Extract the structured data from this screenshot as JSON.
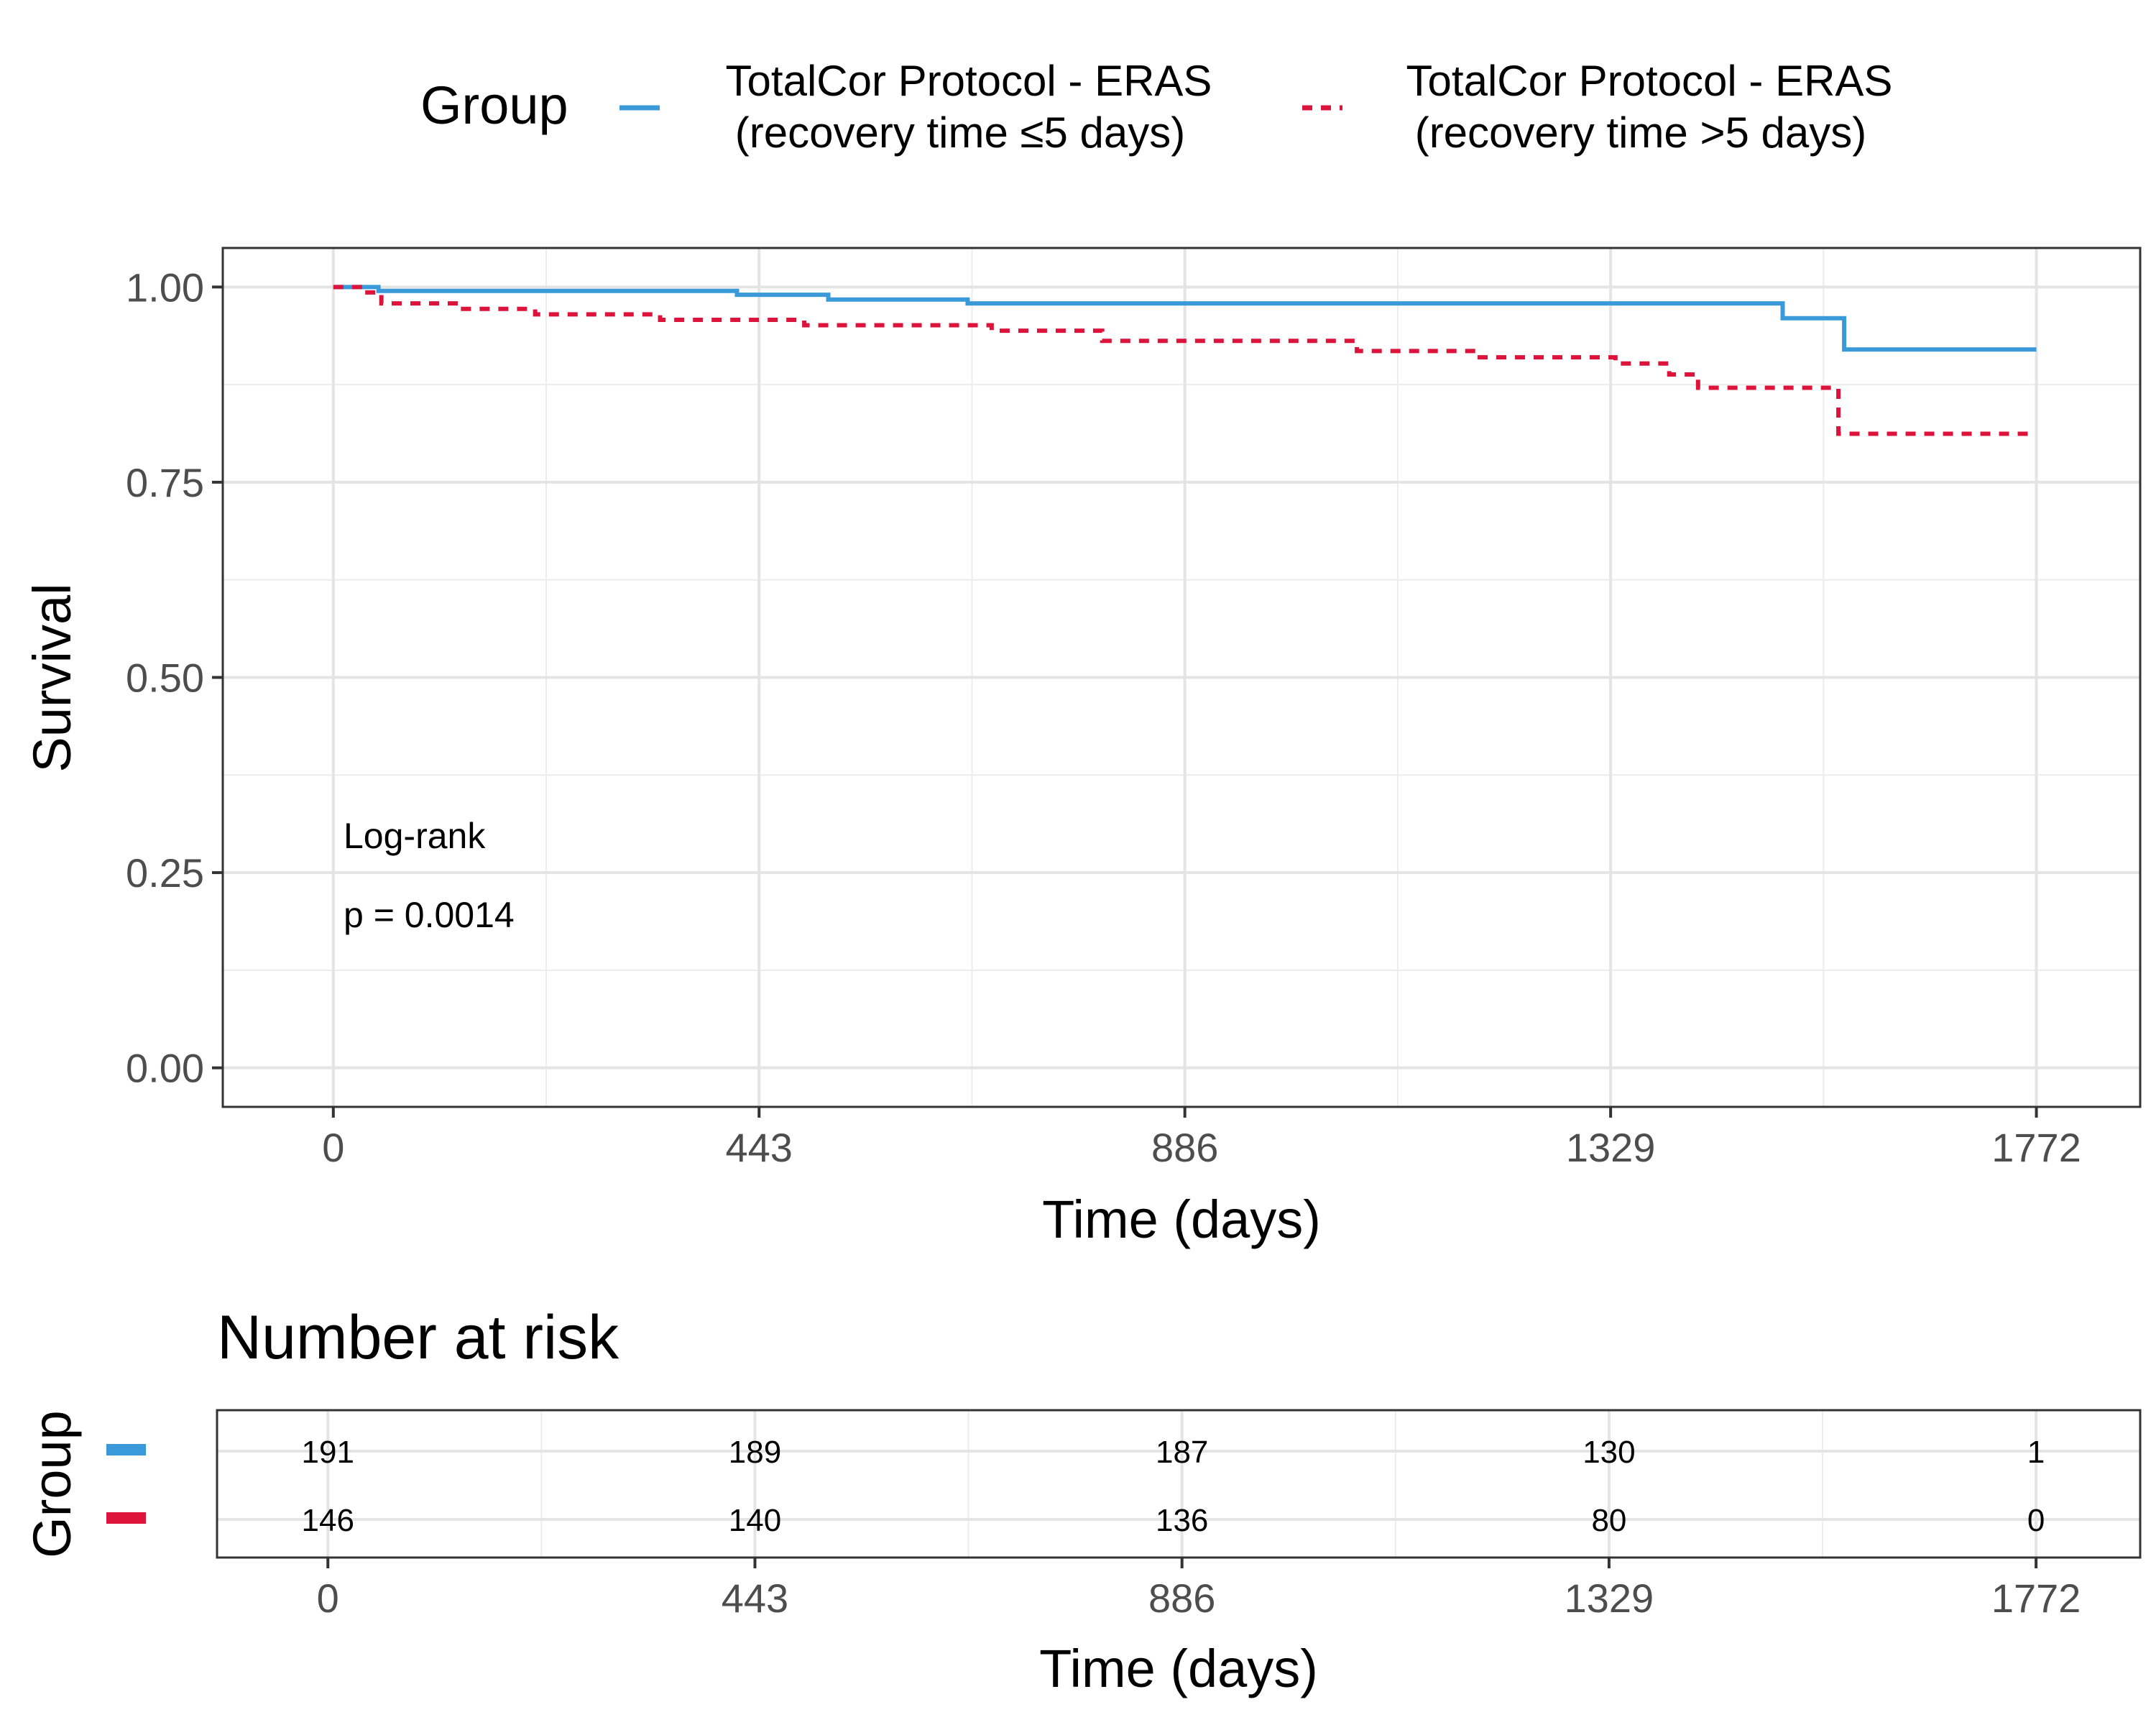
{
  "legend": {
    "title": "Group",
    "items": [
      {
        "line1": "TotalCor Protocol - ERAS",
        "line2": "(recovery time ≤5 days)",
        "color": "#3a9ad9",
        "dash": "solid"
      },
      {
        "line1": "TotalCor Protocol - ERAS",
        "line2": "(recovery time >5 days)",
        "color": "#dc143c",
        "dash": "dashed"
      }
    ]
  },
  "annotation": {
    "line1": "Log-rank",
    "line2": "p = 0.0014"
  },
  "chart_data": {
    "type": "line",
    "subtype": "kaplan-meier-step",
    "xlabel": "Time (days)",
    "ylabel": "Survival",
    "xlim": [
      -115,
      1880
    ],
    "ylim": [
      -0.05,
      1.05
    ],
    "xticks": [
      0,
      443,
      886,
      1329,
      1772
    ],
    "yticks": [
      0.0,
      0.25,
      0.5,
      0.75,
      1.0
    ],
    "ytick_labels": [
      "0.00",
      "0.25",
      "0.50",
      "0.75",
      "1.00"
    ],
    "grid": true,
    "series": [
      {
        "name": "TotalCor Protocol - ERAS (recovery time ≤5 days)",
        "color": "#3a9ad9",
        "dash": "solid",
        "x": [
          0,
          47,
          420,
          515,
          660,
          1508,
          1572,
          1772
        ],
        "y": [
          1.0,
          0.995,
          0.99,
          0.984,
          0.979,
          0.96,
          0.92,
          0.92
        ]
      },
      {
        "name": "TotalCor Protocol - ERAS (recovery time >5 days)",
        "color": "#dc143c",
        "dash": "dashed",
        "x": [
          0,
          32,
          50,
          135,
          210,
          340,
          490,
          685,
          800,
          1065,
          1190,
          1334,
          1390,
          1420,
          1566,
          1772
        ],
        "y": [
          1.0,
          0.993,
          0.979,
          0.972,
          0.965,
          0.958,
          0.951,
          0.944,
          0.931,
          0.918,
          0.91,
          0.902,
          0.888,
          0.871,
          0.812,
          0.812
        ]
      }
    ]
  },
  "risk_table": {
    "title": "Number at risk",
    "ylabel": "Group",
    "xlabel": "Time (days)",
    "times": [
      0,
      443,
      886,
      1329,
      1772
    ],
    "rows": [
      {
        "color": "#3a9ad9",
        "values": [
          "191",
          "189",
          "187",
          "130",
          "1"
        ]
      },
      {
        "color": "#dc143c",
        "values": [
          "146",
          "140",
          "136",
          "80",
          "0"
        ]
      }
    ]
  }
}
